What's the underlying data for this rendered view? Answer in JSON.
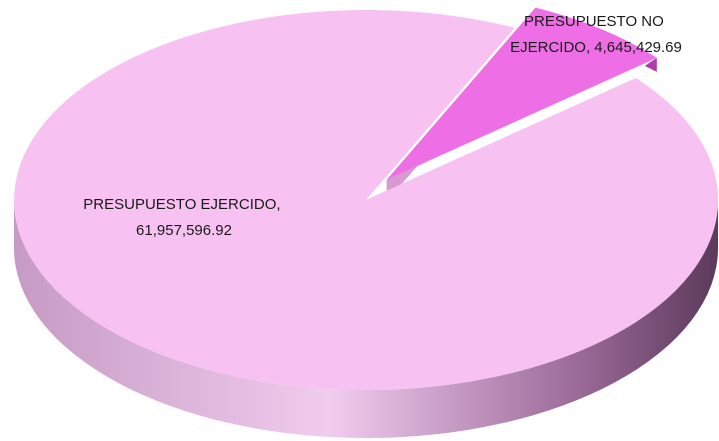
{
  "chart_data": {
    "type": "pie",
    "style": "3d",
    "title": "",
    "slices": [
      {
        "label_line1": "PRESUPUESTO EJERCIDO,",
        "label_line2": "61,957,596.92",
        "value": 61957596.92,
        "color": "#f7c2f2",
        "side_color": "#b27eb0",
        "exploded": false
      },
      {
        "label_line1": "PRESUPUESTO NO",
        "label_line2": "EJERCIDO, 4,645,429.69",
        "value": 4645429.69,
        "color": "#ee6fe5",
        "side_color": "#b03ca8",
        "exploded": true
      }
    ]
  }
}
